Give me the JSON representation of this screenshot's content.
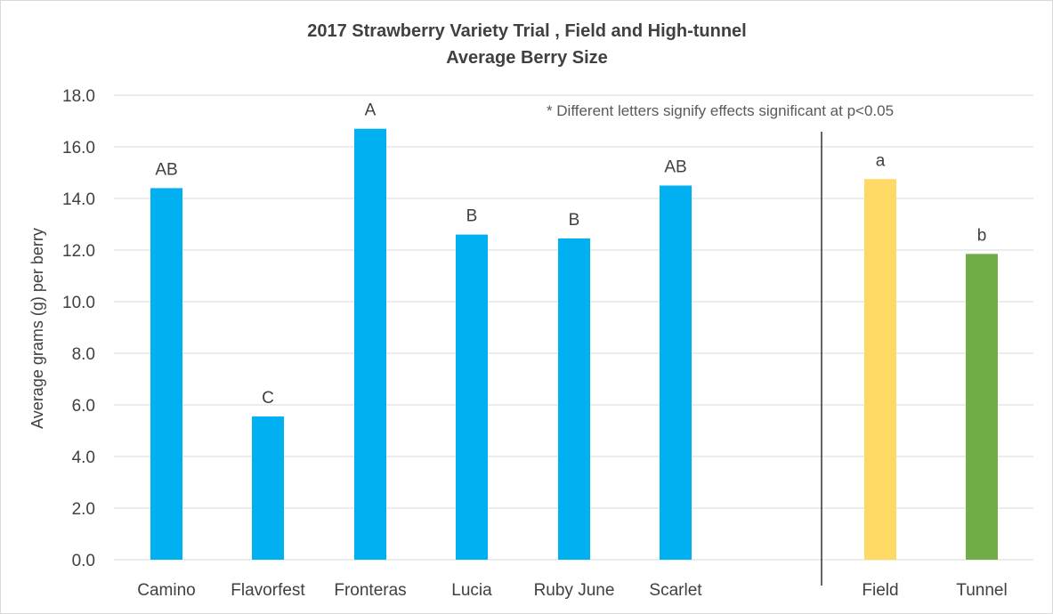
{
  "chart_data": {
    "type": "bar",
    "title": "2017 Strawberry Variety Trial , Field and High-tunnel",
    "subtitle": "Average Berry Size",
    "xlabel": "",
    "ylabel": "Average grams (g) per berry",
    "ylim": [
      0,
      18
    ],
    "ytick_step": 2,
    "ytick_labels": [
      "0.0",
      "2.0",
      "4.0",
      "6.0",
      "8.0",
      "10.0",
      "12.0",
      "14.0",
      "16.0",
      "18.0"
    ],
    "grid": true,
    "legend": "none",
    "annotation": "* Different letters signify effects significant at p<0.05",
    "categories": [
      "Camino",
      "Flavorfest",
      "Fronteras",
      "Lucia",
      "Ruby June",
      "Scarlet",
      "Field",
      "Tunnel"
    ],
    "values": [
      14.4,
      5.55,
      16.7,
      12.6,
      12.45,
      14.5,
      14.75,
      11.85
    ],
    "data_labels": [
      "AB",
      "C",
      "A",
      "B",
      "B",
      "AB",
      "a",
      "b"
    ],
    "colors": [
      "#00b0f0",
      "#00b0f0",
      "#00b0f0",
      "#00b0f0",
      "#00b0f0",
      "#00b0f0",
      "#ffd966",
      "#70ad47"
    ],
    "groups": [
      {
        "categories": [
          "Camino",
          "Flavorfest",
          "Fronteras",
          "Lucia",
          "Ruby June",
          "Scarlet"
        ]
      },
      {
        "categories": [
          "Field",
          "Tunnel"
        ]
      }
    ],
    "gridline_color": "#d9d9d9",
    "text_color": "#404040",
    "separator_color": "#000000"
  }
}
